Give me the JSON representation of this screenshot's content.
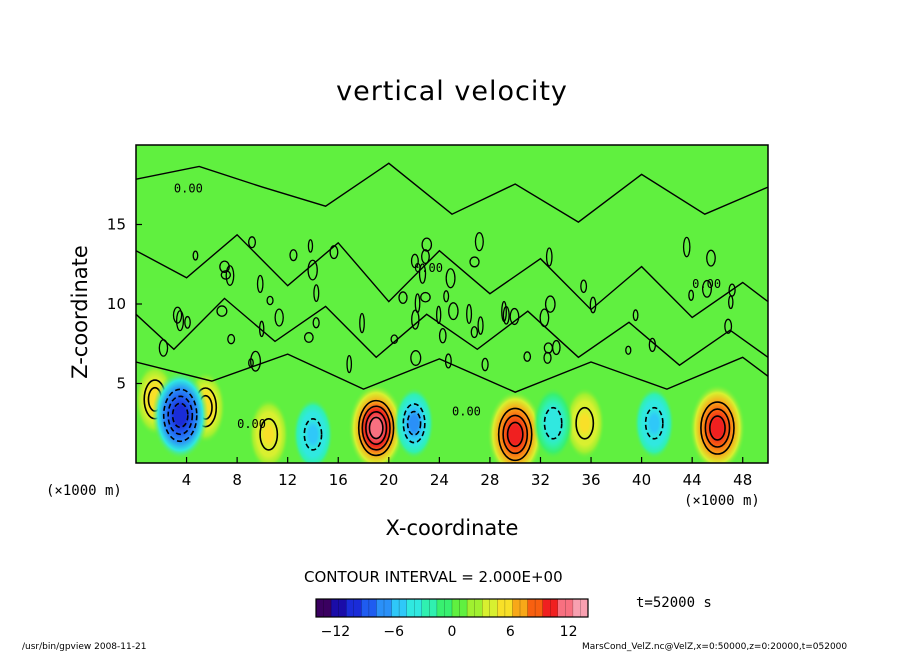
{
  "chart_data": {
    "type": "heatmap",
    "title": "vertical velocity",
    "xlabel": "X-coordinate",
    "ylabel": "Z-coordinate",
    "x_unit": "(×1000 m)",
    "xlim": [
      0,
      50
    ],
    "ylim": [
      0,
      20
    ],
    "x_ticks": [
      "4",
      "8",
      "12",
      "16",
      "20",
      "24",
      "28",
      "32",
      "36",
      "40",
      "44",
      "48"
    ],
    "y_ticks": [
      "5",
      "10",
      "15"
    ],
    "contour_interval": "CONTOUR INTERVAL = 2.000E+00",
    "contour_labels": [
      "0.00",
      "0.00",
      "0.00",
      "0.00",
      "0.00"
    ],
    "time": "t=52000 s",
    "colorbar": {
      "range": [
        -14,
        14
      ],
      "ticks": [
        "−12",
        "−6",
        "0",
        "6",
        "12"
      ],
      "colors": [
        "#3a0060",
        "#1a0ca8",
        "#1a2cd8",
        "#1f5cf0",
        "#2a90f8",
        "#2fc8f8",
        "#30e8e0",
        "#30f0b0",
        "#38f070",
        "#60f040",
        "#a0f030",
        "#d8f030",
        "#f8e028",
        "#f8a818",
        "#f86010",
        "#f02020",
        "#f87080",
        "#f8a0b0"
      ]
    },
    "features": [
      {
        "kind": "updraft",
        "x": 19,
        "z": 2.2,
        "peak": 12
      },
      {
        "kind": "updraft",
        "x": 30,
        "z": 1.8,
        "peak": 10
      },
      {
        "kind": "updraft",
        "x": 46,
        "z": 2.2,
        "peak": 10
      },
      {
        "kind": "updraft",
        "x": 1.5,
        "z": 4.0,
        "peak": 6
      },
      {
        "kind": "updraft",
        "x": 5.5,
        "z": 3.5,
        "peak": 6
      },
      {
        "kind": "updraft",
        "x": 10.5,
        "z": 1.8,
        "peak": 5
      },
      {
        "kind": "updraft",
        "x": 35.5,
        "z": 2.5,
        "peak": 5
      },
      {
        "kind": "downdraft",
        "x": 3.5,
        "z": 3.0,
        "peak": -10
      },
      {
        "kind": "downdraft",
        "x": 22,
        "z": 2.5,
        "peak": -7
      },
      {
        "kind": "downdraft",
        "x": 14,
        "z": 1.8,
        "peak": -5
      },
      {
        "kind": "downdraft",
        "x": 33,
        "z": 2.5,
        "peak": -4
      },
      {
        "kind": "downdraft",
        "x": 41,
        "z": 2.5,
        "peak": -5
      }
    ]
  },
  "footer": {
    "left": "/usr/bin/gpview   2008-11-21",
    "right": "MarsCond_VelZ.nc@VelZ,x=0:50000,z=0:20000,t=052000"
  }
}
